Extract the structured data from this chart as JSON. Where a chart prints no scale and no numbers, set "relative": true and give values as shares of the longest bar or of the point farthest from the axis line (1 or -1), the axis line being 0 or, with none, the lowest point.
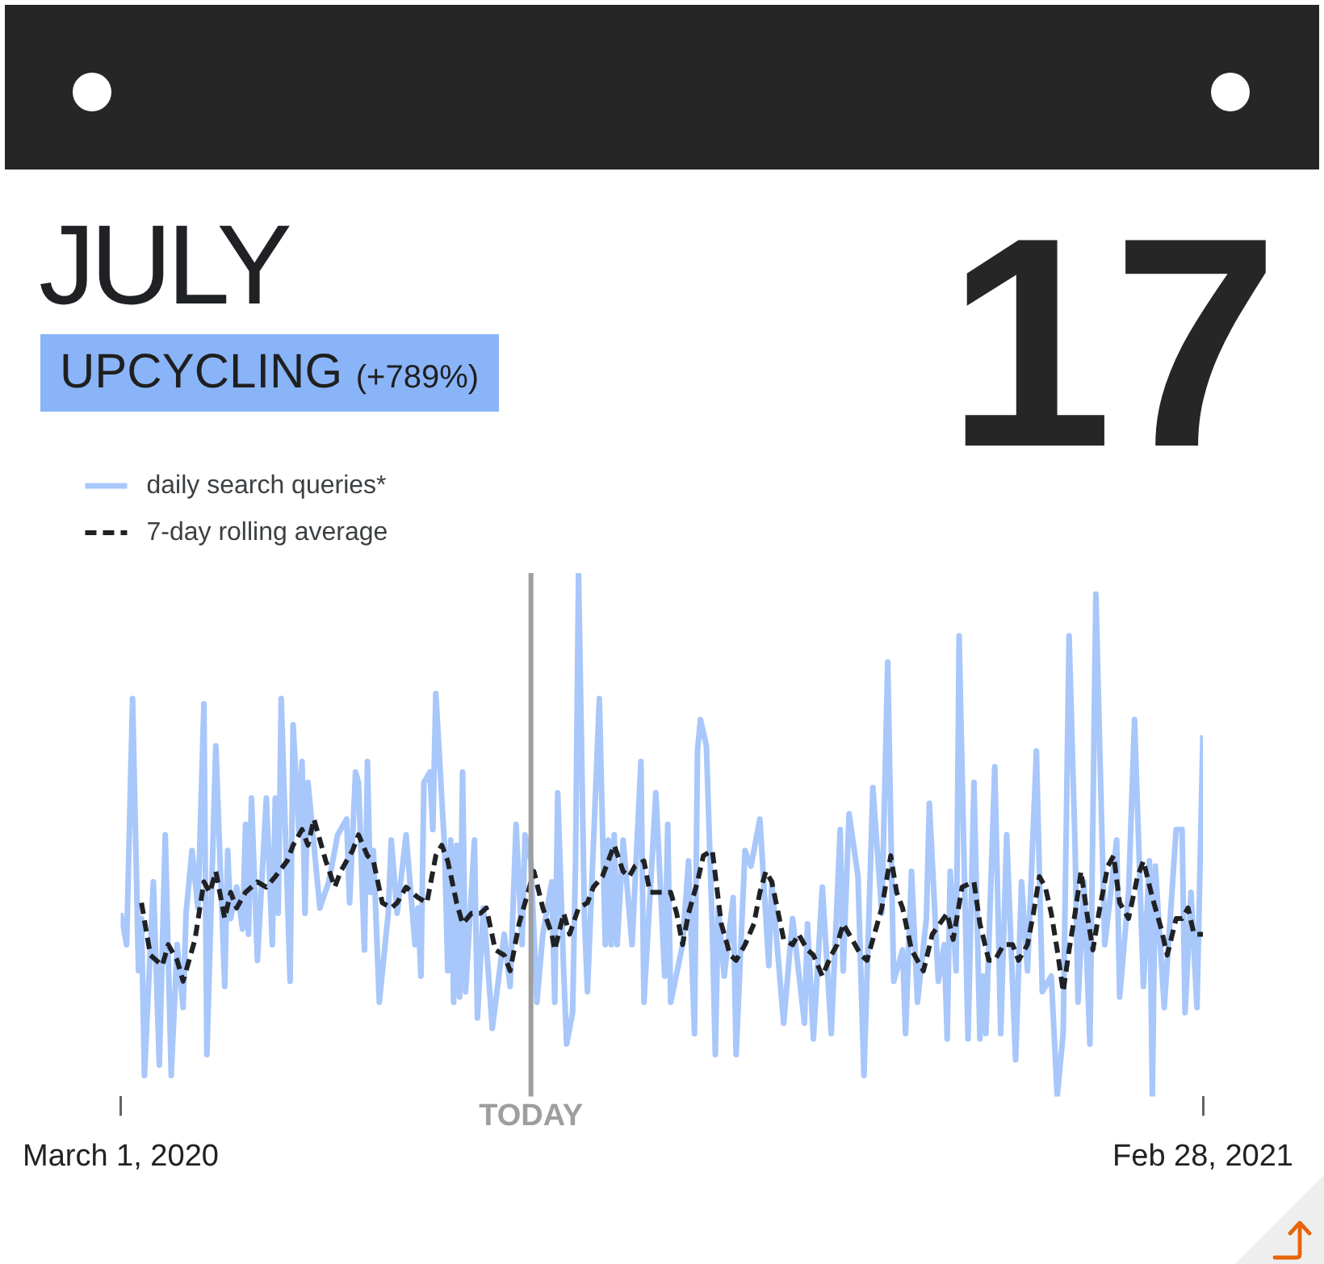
{
  "chart_data": {
    "type": "line",
    "title": "JULY",
    "subtitle": "UPCYCLING (+789%)",
    "annotations": [
      "17"
    ],
    "relative": true,
    "xlim": [
      "2020-03-01",
      "2021-02-28"
    ],
    "xticks": [
      {
        "value": "2020-03-01",
        "label": "March 1, 2020"
      },
      {
        "value": "2021-02-28",
        "label": "Feb 28, 2021"
      }
    ],
    "legend": "top left",
    "ref_lines": [
      {
        "axis": "x",
        "value": "2020-07-17",
        "label": "TODAY",
        "color": "#9e9e9e"
      }
    ],
    "series": [
      {
        "name": "daily search queries*",
        "color": "#a8c7fa",
        "x": [
          "2020-03-01",
          "2020-03-03",
          "2020-03-05",
          "2020-03-07",
          "2020-03-08",
          "2020-03-09",
          "2020-03-12",
          "2020-03-14",
          "2020-03-16",
          "2020-03-18",
          "2020-03-20",
          "2020-03-22",
          "2020-03-23",
          "2020-03-25",
          "2020-03-27",
          "2020-03-29",
          "2020-03-30",
          "2020-04-02",
          "2020-04-05",
          "2020-04-06",
          "2020-04-07",
          "2020-04-09",
          "2020-04-11",
          "2020-04-12",
          "2020-04-13",
          "2020-04-14",
          "2020-04-16",
          "2020-04-19",
          "2020-04-21",
          "2020-04-22",
          "2020-04-23",
          "2020-04-24",
          "2020-04-27",
          "2020-04-28",
          "2020-04-30",
          "2020-05-01",
          "2020-05-02",
          "2020-05-03",
          "2020-05-07",
          "2020-05-10",
          "2020-05-13",
          "2020-05-16",
          "2020-05-17",
          "2020-05-19",
          "2020-05-20",
          "2020-05-22",
          "2020-05-23",
          "2020-05-24",
          "2020-05-25",
          "2020-05-27",
          "2020-05-30",
          "2020-05-31",
          "2020-06-02",
          "2020-06-05",
          "2020-06-08",
          "2020-06-09",
          "2020-06-10",
          "2020-06-11",
          "2020-06-13",
          "2020-06-14",
          "2020-06-15",
          "2020-06-18",
          "2020-06-19",
          "2020-06-20",
          "2020-06-21",
          "2020-06-22",
          "2020-06-23",
          "2020-06-24",
          "2020-06-25",
          "2020-06-28",
          "2020-06-29",
          "2020-07-01",
          "2020-07-02",
          "2020-07-04",
          "2020-07-08",
          "2020-07-10",
          "2020-07-12",
          "2020-07-14",
          "2020-07-15",
          "2020-07-17",
          "2020-07-19",
          "2020-07-21",
          "2020-07-24",
          "2020-07-25",
          "2020-07-26",
          "2020-07-28",
          "2020-07-29",
          "2020-07-31",
          "2020-08-01",
          "2020-08-02",
          "2020-08-04",
          "2020-08-05",
          "2020-08-09",
          "2020-08-11",
          "2020-08-12",
          "2020-08-13",
          "2020-08-14",
          "2020-08-15",
          "2020-08-17",
          "2020-08-20",
          "2020-08-23",
          "2020-08-24",
          "2020-08-28",
          "2020-08-31",
          "2020-09-01",
          "2020-09-02",
          "2020-09-06",
          "2020-09-08",
          "2020-09-10",
          "2020-09-11",
          "2020-09-12",
          "2020-09-14",
          "2020-09-16",
          "2020-09-17",
          "2020-09-18",
          "2020-09-20",
          "2020-09-23",
          "2020-09-24",
          "2020-09-27",
          "2020-09-29",
          "2020-10-02",
          "2020-10-05",
          "2020-10-06",
          "2020-10-10",
          "2020-10-13",
          "2020-10-17",
          "2020-10-18",
          "2020-10-20",
          "2020-10-23",
          "2020-10-26",
          "2020-10-29",
          "2020-10-30",
          "2020-11-01",
          "2020-11-04",
          "2020-11-06",
          "2020-11-09",
          "2020-11-12",
          "2020-11-14",
          "2020-11-16",
          "2020-11-19",
          "2020-11-20",
          "2020-11-22",
          "2020-11-24",
          "2020-11-27",
          "2020-11-28",
          "2020-12-01",
          "2020-12-03",
          "2020-12-04",
          "2020-12-05",
          "2020-12-07",
          "2020-12-08",
          "2020-12-11",
          "2020-12-13",
          "2020-12-15",
          "2020-12-16",
          "2020-12-17",
          "2020-12-20",
          "2020-12-22",
          "2020-12-24",
          "2020-12-27",
          "2020-12-29",
          "2020-12-31",
          "2021-01-03",
          "2021-01-05",
          "2021-01-08",
          "2021-01-10",
          "2021-01-12",
          "2021-01-14",
          "2021-01-16",
          "2021-01-17",
          "2021-01-19",
          "2021-01-21",
          "2021-01-23",
          "2021-01-25",
          "2021-01-26",
          "2021-01-30",
          "2021-01-31",
          "2021-02-03",
          "2021-02-05",
          "2021-02-08",
          "2021-02-10",
          "2021-02-11",
          "2021-02-12",
          "2021-02-15",
          "2021-02-19",
          "2021-02-21",
          "2021-02-22",
          "2021-02-24",
          "2021-02-26",
          "2021-02-28"
        ],
        "values": [
          0.35,
          0.29,
          0.76,
          0.24,
          0.34,
          0.04,
          0.41,
          0.06,
          0.5,
          0.04,
          0.29,
          0.17,
          0.35,
          0.47,
          0.36,
          0.75,
          0.08,
          0.67,
          0.21,
          0.47,
          0.34,
          0.4,
          0.32,
          0.52,
          0.31,
          0.57,
          0.26,
          0.57,
          0.29,
          0.57,
          0.35,
          0.76,
          0.22,
          0.71,
          0.5,
          0.64,
          0.35,
          0.6,
          0.36,
          0.41,
          0.5,
          0.53,
          0.37,
          0.62,
          0.6,
          0.28,
          0.64,
          0.39,
          0.47,
          0.18,
          0.35,
          0.49,
          0.35,
          0.5,
          0.29,
          0.36,
          0.23,
          0.6,
          0.62,
          0.51,
          0.77,
          0.47,
          0.24,
          0.49,
          0.18,
          0.48,
          0.19,
          0.62,
          0.2,
          0.49,
          0.15,
          0.36,
          0.29,
          0.13,
          0.31,
          0.21,
          0.52,
          0.29,
          0.5,
          0.45,
          0.18,
          0.31,
          0.41,
          0.18,
          0.58,
          0.24,
          0.1,
          0.16,
          0.45,
          1.0,
          0.34,
          0.2,
          0.76,
          0.29,
          0.49,
          0.29,
          0.5,
          0.29,
          0.49,
          0.29,
          0.64,
          0.18,
          0.58,
          0.23,
          0.52,
          0.18,
          0.29,
          0.45,
          0.12,
          0.66,
          0.72,
          0.67,
          0.32,
          0.08,
          0.36,
          0.23,
          0.38,
          0.08,
          0.47,
          0.44,
          0.53,
          0.25,
          0.41,
          0.14,
          0.34,
          0.14,
          0.33,
          0.11,
          0.4,
          0.12,
          0.51,
          0.24,
          0.54,
          0.42,
          0.04,
          0.59,
          0.35,
          0.83,
          0.22,
          0.28,
          0.12,
          0.43,
          0.18,
          0.34,
          0.56,
          0.22,
          0.29,
          0.11,
          0.43,
          0.24,
          0.88,
          0.11,
          0.6,
          0.11,
          0.23,
          0.12,
          0.63,
          0.12,
          0.5,
          0.07,
          0.41,
          0.24,
          0.66,
          0.2,
          0.23,
          0.0,
          0.12,
          0.88,
          0.48,
          0.18,
          0.41,
          0.1,
          0.96,
          0.51,
          0.29,
          0.49,
          0.19,
          0.39,
          0.72,
          0.21,
          0.45,
          0.0,
          0.44,
          0.17,
          0.51,
          0.51,
          0.16,
          0.39,
          0.17,
          0.69
        ]
      },
      {
        "name": "7-day rolling average",
        "color": "#202124",
        "line_style": "dashed",
        "x": [
          "2020-03-08",
          "2020-03-11",
          "2020-03-15",
          "2020-03-17",
          "2020-03-20",
          "2020-03-22",
          "2020-03-26",
          "2020-03-29",
          "2020-03-31",
          "2020-04-02",
          "2020-04-05",
          "2020-04-07",
          "2020-04-09",
          "2020-04-12",
          "2020-04-16",
          "2020-04-19",
          "2020-04-22",
          "2020-04-26",
          "2020-04-28",
          "2020-05-01",
          "2020-05-03",
          "2020-05-05",
          "2020-05-07",
          "2020-05-09",
          "2020-05-12",
          "2020-05-14",
          "2020-05-18",
          "2020-05-20",
          "2020-05-23",
          "2020-05-25",
          "2020-05-28",
          "2020-05-31",
          "2020-06-02",
          "2020-06-05",
          "2020-06-09",
          "2020-06-12",
          "2020-06-15",
          "2020-06-17",
          "2020-06-19",
          "2020-06-22",
          "2020-06-24",
          "2020-06-27",
          "2020-06-30",
          "2020-07-02",
          "2020-07-05",
          "2020-07-08",
          "2020-07-10",
          "2020-07-13",
          "2020-07-15",
          "2020-07-18",
          "2020-07-21",
          "2020-07-24",
          "2020-07-25",
          "2020-07-28",
          "2020-07-30",
          "2020-08-02",
          "2020-08-05",
          "2020-08-07",
          "2020-08-10",
          "2020-08-12",
          "2020-08-14",
          "2020-08-17",
          "2020-08-19",
          "2020-08-21",
          "2020-08-24",
          "2020-08-26",
          "2020-08-29",
          "2020-09-02",
          "2020-09-04",
          "2020-09-06",
          "2020-09-08",
          "2020-09-11",
          "2020-09-13",
          "2020-09-16",
          "2020-09-19",
          "2020-09-22",
          "2020-09-24",
          "2020-09-27",
          "2020-09-30",
          "2020-10-02",
          "2020-10-04",
          "2020-10-06",
          "2020-10-10",
          "2020-10-13",
          "2020-10-15",
          "2020-10-18",
          "2020-10-20",
          "2020-10-23",
          "2020-10-26",
          "2020-10-28",
          "2020-10-30",
          "2020-11-02",
          "2020-11-05",
          "2020-11-07",
          "2020-11-10",
          "2020-11-12",
          "2020-11-15",
          "2020-11-17",
          "2020-11-19",
          "2020-11-22",
          "2020-11-26",
          "2020-11-29",
          "2020-12-04",
          "2020-12-06",
          "2020-12-09",
          "2020-12-13",
          "2020-12-15",
          "2020-12-18",
          "2020-12-20",
          "2020-12-23",
          "2020-12-26",
          "2020-12-28",
          "2020-12-31",
          "2021-01-02",
          "2021-01-04",
          "2021-01-06",
          "2021-01-08",
          "2021-01-10",
          "2021-01-12",
          "2021-01-14",
          "2021-01-16",
          "2021-01-18",
          "2021-01-20",
          "2021-01-22",
          "2021-01-24",
          "2021-01-27",
          "2021-01-29",
          "2021-01-31",
          "2021-02-03",
          "2021-02-06",
          "2021-02-08",
          "2021-02-11",
          "2021-02-14",
          "2021-02-16",
          "2021-02-19",
          "2021-02-21",
          "2021-02-23",
          "2021-02-25",
          "2021-02-28"
        ],
        "values": [
          0.37,
          0.27,
          0.25,
          0.29,
          0.26,
          0.22,
          0.3,
          0.41,
          0.39,
          0.43,
          0.34,
          0.39,
          0.36,
          0.39,
          0.41,
          0.4,
          0.42,
          0.45,
          0.48,
          0.51,
          0.48,
          0.53,
          0.49,
          0.45,
          0.4,
          0.43,
          0.47,
          0.5,
          0.46,
          0.45,
          0.37,
          0.36,
          0.37,
          0.4,
          0.38,
          0.37,
          0.46,
          0.48,
          0.45,
          0.37,
          0.33,
          0.35,
          0.35,
          0.36,
          0.28,
          0.27,
          0.24,
          0.33,
          0.37,
          0.43,
          0.36,
          0.31,
          0.28,
          0.35,
          0.31,
          0.36,
          0.37,
          0.4,
          0.42,
          0.45,
          0.48,
          0.43,
          0.42,
          0.44,
          0.45,
          0.39,
          0.39,
          0.39,
          0.35,
          0.29,
          0.35,
          0.41,
          0.46,
          0.47,
          0.33,
          0.27,
          0.26,
          0.29,
          0.33,
          0.39,
          0.43,
          0.41,
          0.3,
          0.29,
          0.31,
          0.28,
          0.27,
          0.23,
          0.27,
          0.29,
          0.33,
          0.3,
          0.27,
          0.26,
          0.32,
          0.36,
          0.46,
          0.39,
          0.36,
          0.28,
          0.24,
          0.31,
          0.35,
          0.3,
          0.4,
          0.41,
          0.33,
          0.26,
          0.26,
          0.29,
          0.29,
          0.26,
          0.29,
          0.35,
          0.42,
          0.4,
          0.35,
          0.28,
          0.2,
          0.28,
          0.35,
          0.43,
          0.35,
          0.28,
          0.35,
          0.44,
          0.46,
          0.37,
          0.34,
          0.42,
          0.45,
          0.38,
          0.32,
          0.27,
          0.34,
          0.34,
          0.36,
          0.31,
          0.31
        ]
      }
    ]
  }
}
